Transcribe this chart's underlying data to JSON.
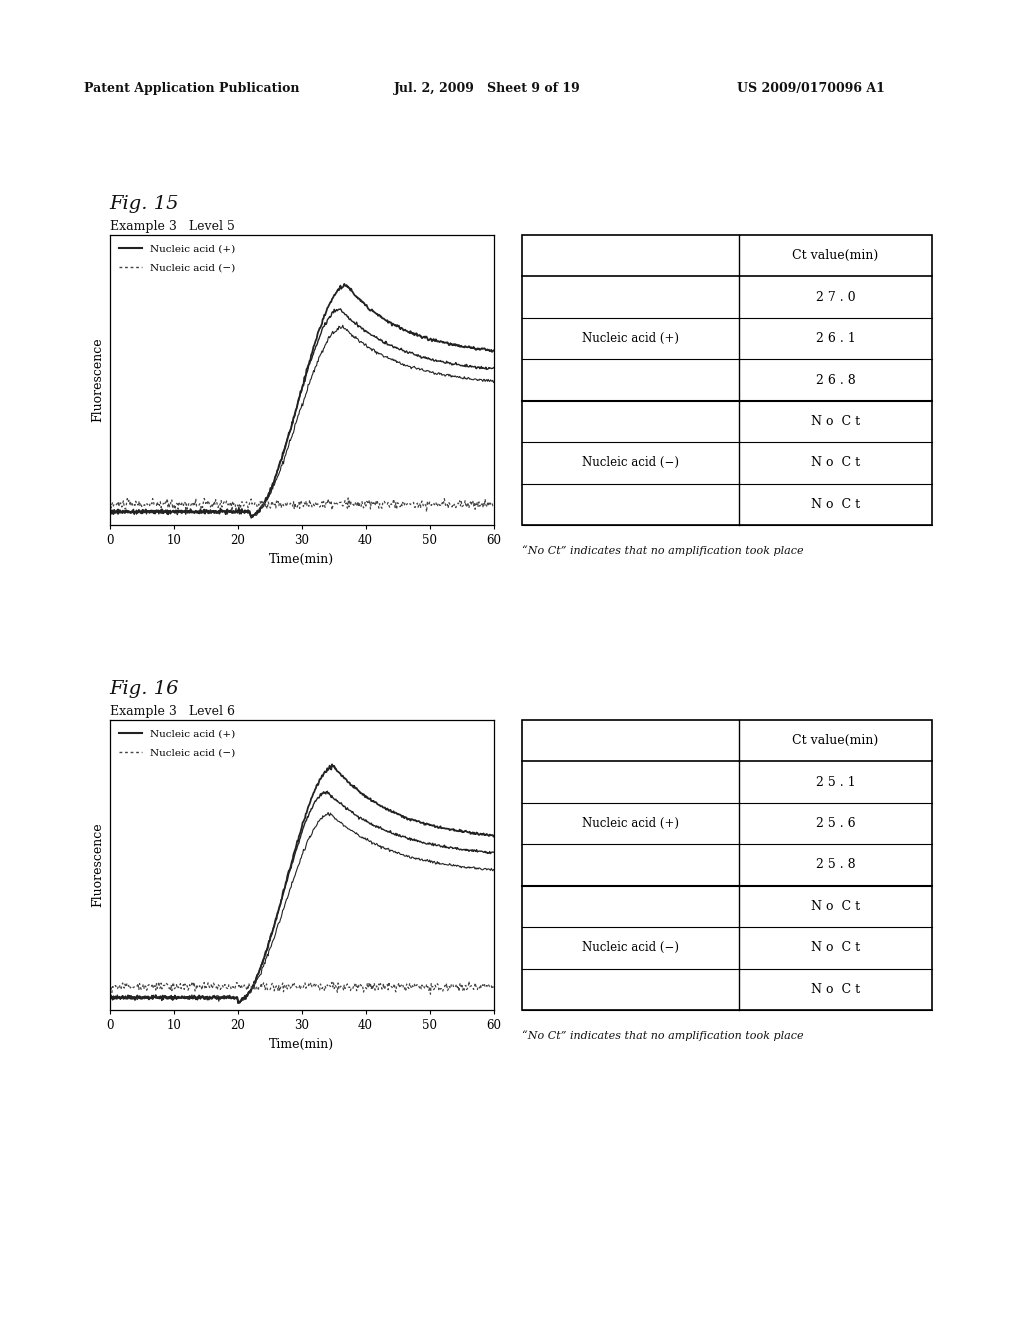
{
  "fig15_title": "Fig. 15",
  "fig15_subtitle": "Example 3   Level 5",
  "fig16_title": "Fig. 16",
  "fig16_subtitle": "Example 3   Level 6",
  "header_left": "Patent Application Publication",
  "header_mid": "Jul. 2, 2009   Sheet 9 of 19",
  "header_right": "US 2009/0170096 A1",
  "xlabel": "Time(min)",
  "ylabel": "Fluorescence",
  "xticks": [
    0,
    10,
    20,
    30,
    40,
    50,
    60
  ],
  "xlim": [
    0,
    60
  ],
  "note": "“No Ct” indicates that no amplification took place",
  "table1_header": [
    "",
    "Ct value(min)"
  ],
  "table1_rows": [
    [
      "",
      "2 7 . 0"
    ],
    [
      "Nucleic acid (+)",
      "2 6 . 1"
    ],
    [
      "",
      "2 6 . 8"
    ],
    [
      "",
      "N o  C t"
    ],
    [
      "Nucleic acid (−)",
      "N o  C t"
    ],
    [
      "",
      "N o  C t"
    ]
  ],
  "table2_header": [
    "",
    "Ct value(min)"
  ],
  "table2_rows": [
    [
      "",
      "2 5 . 1"
    ],
    [
      "Nucleic acid (+)",
      "2 5 . 6"
    ],
    [
      "",
      "2 5 . 8"
    ],
    [
      "",
      "N o  C t"
    ],
    [
      "Nucleic acid (−)",
      "N o  C t"
    ],
    [
      "",
      "N o  C t"
    ]
  ],
  "bg_color": "#ffffff",
  "line_color_solid": "#222222",
  "line_color_dashed": "#444444",
  "font_size_header": 9,
  "font_size_title": 14,
  "font_size_subtitle": 9,
  "font_size_axis": 9,
  "font_size_table": 9,
  "legend_plus": "Nucleic acid (+)",
  "legend_minus": "Nucleic acid (−)"
}
